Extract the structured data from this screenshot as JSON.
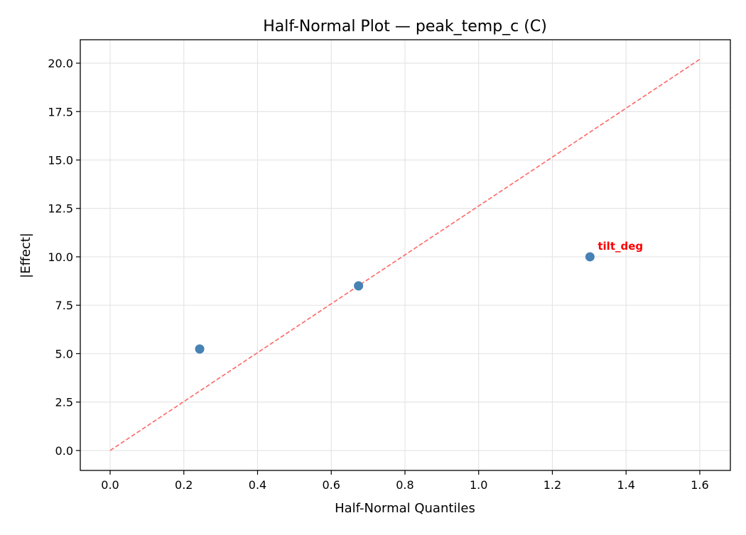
{
  "chart_data": {
    "type": "scatter",
    "title": "Half-Normal Plot — peak_temp_c (C)",
    "xlabel": "Half-Normal Quantiles",
    "ylabel": "|Effect|",
    "xlim": [
      -0.081,
      1.683
    ],
    "ylim": [
      -1.03,
      21.21
    ],
    "xticks": [
      0.0,
      0.2,
      0.4,
      0.6,
      0.8,
      1.0,
      1.2,
      1.4,
      1.6
    ],
    "xtick_labels": [
      "0.0",
      "0.2",
      "0.4",
      "0.6",
      "0.8",
      "1.0",
      "1.2",
      "1.4",
      "1.6"
    ],
    "yticks": [
      0.0,
      2.5,
      5.0,
      7.5,
      10.0,
      12.5,
      15.0,
      17.5,
      20.0
    ],
    "ytick_labels": [
      "0.0",
      "2.5",
      "5.0",
      "7.5",
      "10.0",
      "12.5",
      "15.0",
      "17.5",
      "20.0"
    ],
    "grid": true,
    "points": [
      {
        "x": 0.243,
        "y": 5.24,
        "label": ""
      },
      {
        "x": 0.674,
        "y": 8.5,
        "label": ""
      },
      {
        "x": 1.302,
        "y": 10.0,
        "label": "tilt_deg"
      }
    ],
    "reference_line": {
      "x": [
        0.0,
        1.6
      ],
      "y": [
        0.0,
        20.2
      ],
      "style": "dashed"
    },
    "colors": {
      "points": "#4682b4",
      "reference_line": "#ff6666",
      "annotation": "#ff0000",
      "grid": "#e5e5e5"
    }
  }
}
